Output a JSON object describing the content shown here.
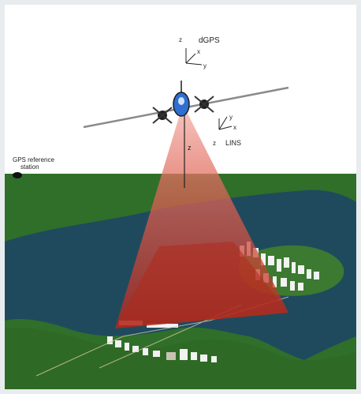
{
  "labels": {
    "dgps": "dGPS",
    "lins": "LINS",
    "gps_reference_line1": "GPS reference",
    "gps_reference_line2": "station",
    "dgps_axis_z": "z",
    "dgps_axis_x": "x",
    "dgps_axis_y": "y",
    "lins_axis_y": "y",
    "lins_axis_x": "x",
    "lins_axis_z": "z",
    "scan_axis_z": "z"
  },
  "colors": {
    "sky": "#ffffff",
    "land": "#2f6f2a",
    "water": "#1f4a5e",
    "beam": "#d9302a",
    "beam_near": "#c0332a",
    "aircraft_body": "#2e6fd0",
    "wing": "#9a9a9a",
    "urban": "#f2f2f2"
  }
}
